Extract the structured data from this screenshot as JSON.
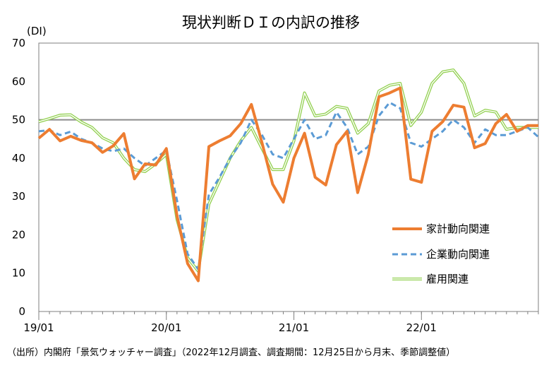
{
  "chart_data": {
    "type": "line",
    "title": "現状判断ＤＩの内訳の推移",
    "ylabel": "(DI)",
    "xlabel": "",
    "ylim": [
      0,
      70
    ],
    "yticks": [
      0,
      10,
      20,
      30,
      40,
      50,
      60,
      70
    ],
    "x_tick_labels": [
      "19/01",
      "20/01",
      "21/01",
      "22/01"
    ],
    "x": [
      "19/01",
      "19/02",
      "19/03",
      "19/04",
      "19/05",
      "19/06",
      "19/07",
      "19/08",
      "19/09",
      "19/10",
      "19/11",
      "19/12",
      "20/01",
      "20/02",
      "20/03",
      "20/04",
      "20/05",
      "20/06",
      "20/07",
      "20/08",
      "20/09",
      "20/10",
      "20/11",
      "20/12",
      "21/01",
      "21/02",
      "21/03",
      "21/04",
      "21/05",
      "21/06",
      "21/07",
      "21/08",
      "21/09",
      "21/10",
      "21/11",
      "21/12",
      "22/01",
      "22/02",
      "22/03",
      "22/04",
      "22/05",
      "22/06",
      "22/07",
      "22/08",
      "22/09",
      "22/10",
      "22/11",
      "22/12"
    ],
    "reference_line": 50,
    "grid": false,
    "legend_position": "right",
    "series": [
      {
        "name": "家計動向関連",
        "color": "#ed7d31",
        "style": "solid",
        "values": [
          45.2,
          47.5,
          44.5,
          45.7,
          44.6,
          44.0,
          41.5,
          43.2,
          46.4,
          34.6,
          38.5,
          38.2,
          42.5,
          25.0,
          12.5,
          8.0,
          43.0,
          44.5,
          45.8,
          49.0,
          54.0,
          44.0,
          33.2,
          28.5,
          40.0,
          46.5,
          35.0,
          33.0,
          43.5,
          47.0,
          31.0,
          41.0,
          56.0,
          57.0,
          58.3,
          34.5,
          33.7,
          47.0,
          49.5,
          53.8,
          53.3,
          42.7,
          43.8,
          49.0,
          51.4,
          47.0,
          48.5,
          48.5
        ]
      },
      {
        "name": "企業動向関連",
        "color": "#5b9bd5",
        "style": "dashed",
        "values": [
          47.0,
          47.3,
          46.0,
          46.9,
          45.0,
          44.0,
          42.5,
          41.8,
          42.5,
          40.0,
          38.0,
          40.0,
          42.0,
          29.0,
          15.0,
          11.0,
          30.5,
          35.0,
          40.0,
          44.0,
          50.0,
          46.0,
          41.0,
          40.0,
          45.0,
          50.0,
          45.0,
          46.0,
          52.0,
          48.0,
          41.0,
          43.0,
          51.0,
          54.5,
          53.0,
          44.0,
          43.0,
          45.0,
          47.0,
          50.0,
          48.0,
          44.0,
          47.5,
          46.0,
          46.0,
          47.0,
          48.0,
          45.5
        ]
      },
      {
        "name": "雇用関連",
        "color": "#92d050",
        "style": "double",
        "values": [
          49.5,
          50.3,
          51.2,
          51.3,
          49.4,
          48.0,
          45.3,
          44.0,
          40.0,
          37.0,
          36.5,
          38.5,
          41.0,
          24.0,
          14.0,
          10.5,
          28.0,
          34.0,
          40.0,
          44.5,
          48.0,
          42.5,
          37.0,
          37.0,
          44.5,
          57.0,
          51.0,
          51.5,
          53.5,
          53.0,
          46.5,
          49.0,
          57.5,
          59.0,
          59.5,
          48.5,
          52.0,
          59.5,
          62.5,
          63.0,
          59.5,
          51.0,
          52.5,
          52.0,
          47.5,
          48.0,
          48.0,
          48.0
        ]
      }
    ],
    "source": "（出所）内閣府「景気ウォッチャー調査」（2022年12月調査、調査期間：12月25日から月末、季節調整値）"
  }
}
